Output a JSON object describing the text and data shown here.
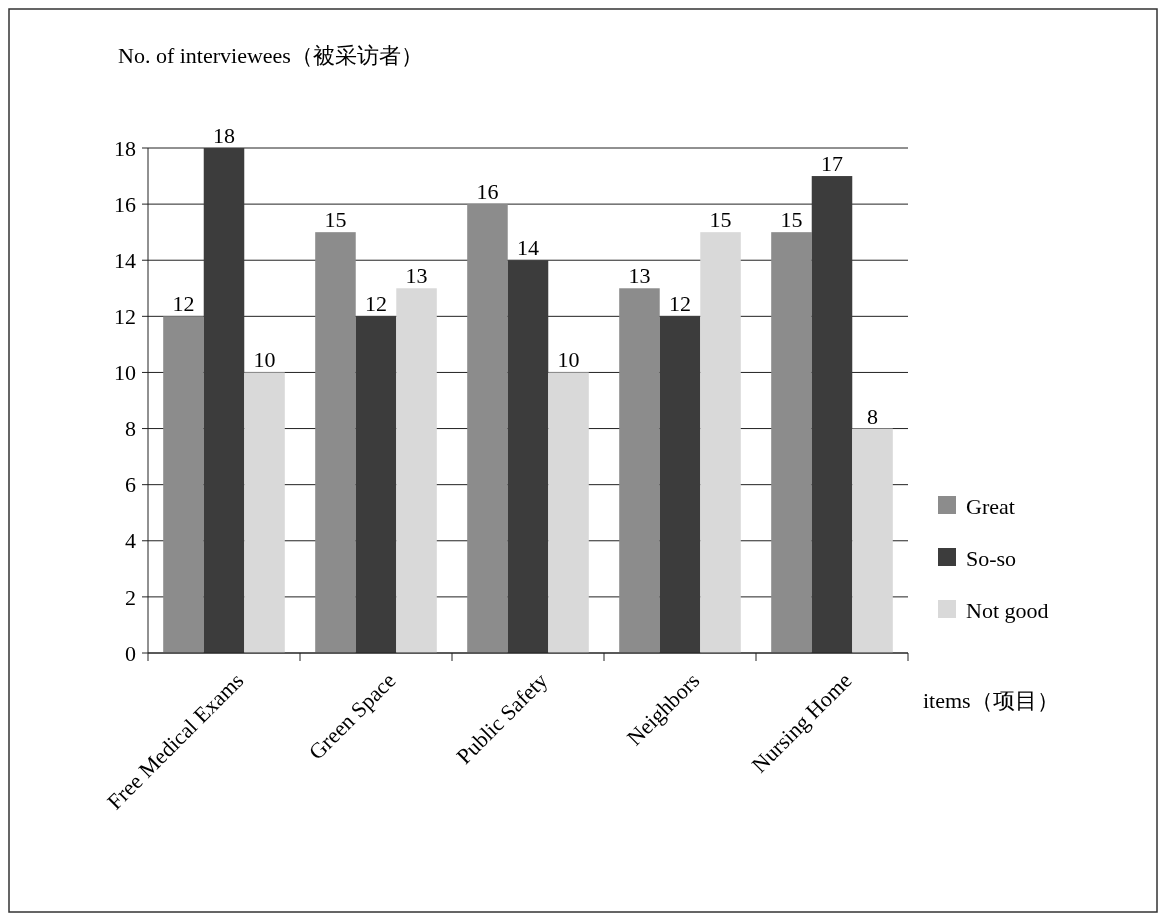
{
  "chart_data": {
    "type": "bar",
    "ylabel": "No. of interviewees（被采访者）",
    "xlabel": "items（项目）",
    "categories": [
      "Free Medical Exams",
      "Green Space",
      "Public Safety",
      "Neighbors",
      "Nursing Home"
    ],
    "series": [
      {
        "name": "Great",
        "color": "#8c8c8c",
        "values": [
          12,
          15,
          16,
          13,
          15
        ]
      },
      {
        "name": "So-so",
        "color": "#3c3c3c",
        "values": [
          18,
          12,
          14,
          12,
          17
        ]
      },
      {
        "name": "Not good",
        "color": "#d9d9d9",
        "values": [
          10,
          13,
          10,
          15,
          8
        ]
      }
    ],
    "ylim": [
      0,
      18
    ],
    "yticks": [
      0,
      2,
      4,
      6,
      8,
      10,
      12,
      14,
      16,
      18
    ],
    "grid": "y",
    "legend": "right",
    "data_labels": true
  }
}
